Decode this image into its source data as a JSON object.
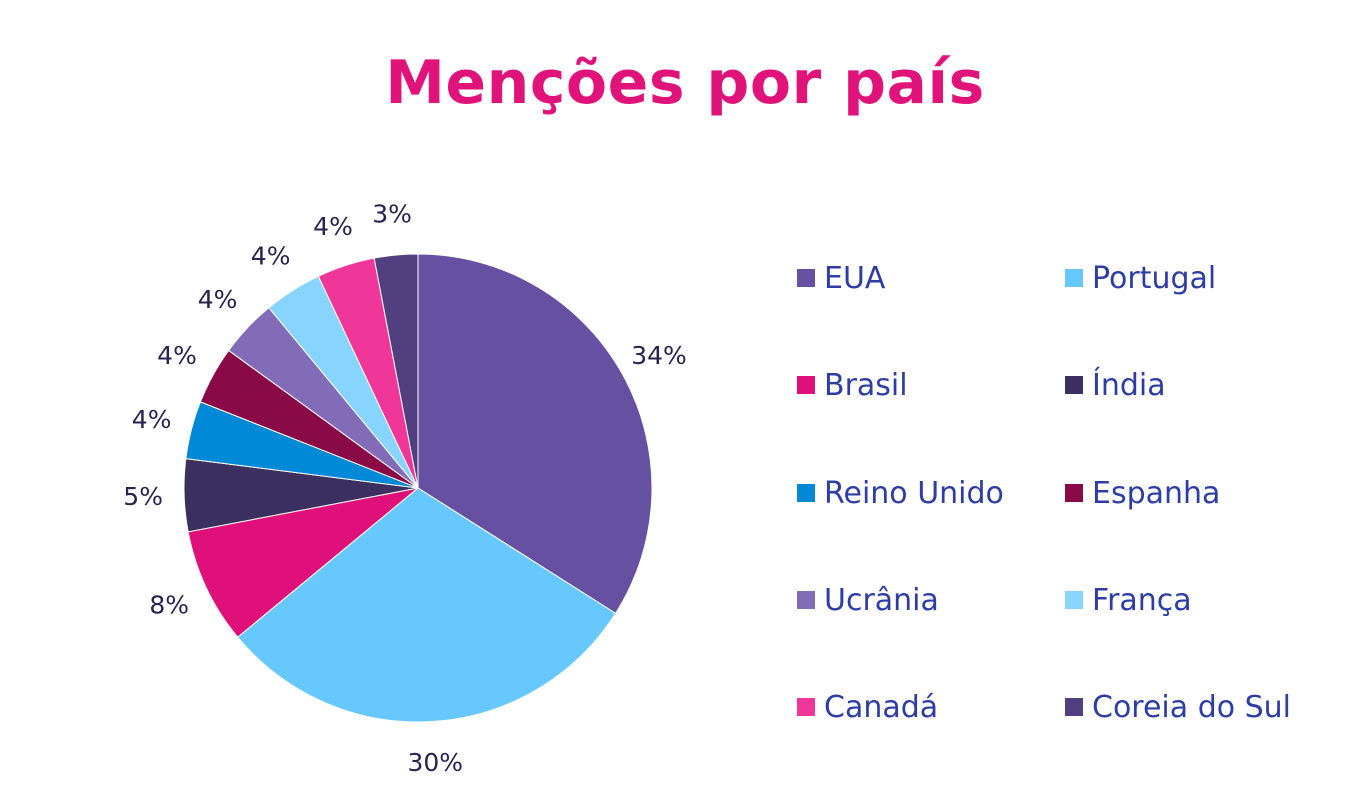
{
  "chart_data": {
    "type": "pie",
    "title": "Menções por país",
    "categories": [
      "EUA",
      "Portugal",
      "Brasil",
      "Índia",
      "Reino Unido",
      "Espanha",
      "Ucrânia",
      "França",
      "Canadá",
      "Coreia do Sul"
    ],
    "values": [
      34,
      30,
      8,
      5,
      4,
      4,
      4,
      4,
      4,
      3
    ],
    "value_labels": [
      "34%",
      "30%",
      "8%",
      "5%",
      "4%",
      "4%",
      "4%",
      "4%",
      "4%",
      "3%"
    ],
    "colors": [
      "#6650a1",
      "#66c8ff",
      "#e0107b",
      "#3b3060",
      "#0089d6",
      "#890a46",
      "#826cb8",
      "#87d5ff",
      "#f03699",
      "#513f80"
    ],
    "legend_placement": "right",
    "start_angle": "top",
    "direction": "clockwise"
  }
}
